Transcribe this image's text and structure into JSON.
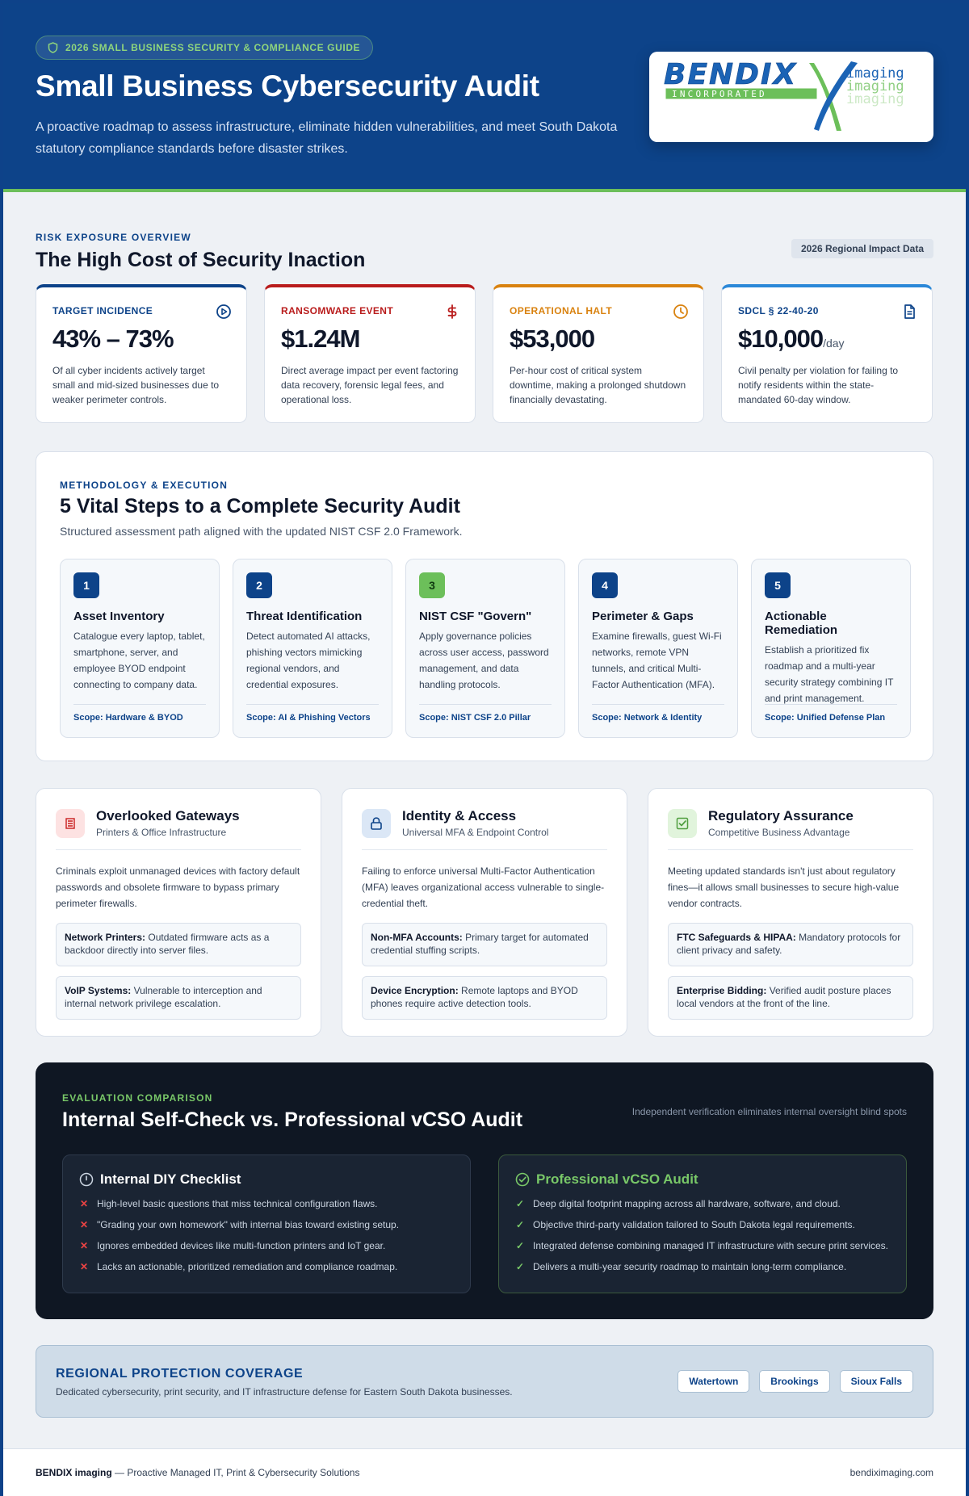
{
  "hero": {
    "guide_label": "2026 SMALL BUSINESS SECURITY & COMPLIANCE GUIDE",
    "title": "Small Business Cybersecurity Audit",
    "subtitle": "A proactive roadmap to assess infrastructure, eliminate hidden vulnerabilities, and meet South Dakota statutory compliance standards before disaster strikes.",
    "logo": {
      "wordmark": "BENDIX",
      "tagline": "INCORPORATED",
      "suffix": "imaging",
      "colors": {
        "blue": "#1b63b5",
        "green": "#6cbf5a"
      }
    }
  },
  "risk_overview": {
    "eyebrow": "RISK EXPOSURE OVERVIEW",
    "title": "The High Cost of Security Inaction",
    "badge": "2026 Regional Impact Data",
    "stats": [
      {
        "label": "TARGET INCIDENCE",
        "value": "43% – 73%",
        "unit": "",
        "desc": "Of all cyber incidents actively target small and mid-sized businesses due to weaker perimeter controls.",
        "icon": "play-circle-icon",
        "color": "#0d4389"
      },
      {
        "label": "RANSOMWARE EVENT",
        "value": "$1.24M",
        "unit": "",
        "desc": "Direct average impact per event factoring data recovery, forensic legal fees, and operational loss.",
        "icon": "dollar-icon",
        "color": "#b91c1c"
      },
      {
        "label": "OPERATIONAL HALT",
        "value": "$53,000",
        "unit": "",
        "desc": "Per-hour cost of critical system downtime, making a prolonged shutdown financially devastating.",
        "icon": "clock-icon",
        "color": "#d9820f"
      },
      {
        "label": "SDCL § 22-40-20",
        "value": "$10,000",
        "unit": "/day",
        "desc": "Civil penalty per violation for failing to notify residents within the state-mandated 60-day window.",
        "icon": "document-icon",
        "color": "#2b88d8"
      }
    ]
  },
  "methodology": {
    "eyebrow": "METHODOLOGY & EXECUTION",
    "title": "5 Vital Steps to a Complete Security Audit",
    "subtitle": "Structured assessment path aligned with the updated NIST CSF 2.0 Framework.",
    "steps": [
      {
        "num": "1",
        "title": "Asset Inventory",
        "desc": "Catalogue every laptop, tablet, smartphone, server, and employee BYOD endpoint connecting to company data.",
        "scope": "Scope: Hardware & BYOD"
      },
      {
        "num": "2",
        "title": "Threat Identification",
        "desc": "Detect automated AI attacks, phishing vectors mimicking regional vendors, and credential exposures.",
        "scope": "Scope: AI & Phishing Vectors"
      },
      {
        "num": "3",
        "title": "NIST CSF \"Govern\"",
        "desc": "Apply governance policies across user access, password management, and data handling protocols.",
        "scope": "Scope: NIST CSF 2.0 Pillar"
      },
      {
        "num": "4",
        "title": "Perimeter & Gaps",
        "desc": "Examine firewalls, guest Wi-Fi networks, remote VPN tunnels, and critical Multi-Factor Authentication (MFA).",
        "scope": "Scope: Network & Identity"
      },
      {
        "num": "5",
        "title": "Actionable Remediation",
        "desc": "Establish a prioritized fix roadmap and a multi-year security strategy combining IT and print management.",
        "scope": "Scope: Unified Defense Plan"
      }
    ]
  },
  "focus_areas": [
    {
      "title": "Overlooked Gateways",
      "subtitle": "Printers & Office Infrastructure",
      "icon": "printer-icon",
      "body": "Criminals exploit unmanaged devices with factory default passwords and obsolete firmware to bypass primary perimeter firewalls.",
      "items": [
        {
          "term": "Network Printers:",
          "text": "Outdated firmware acts as a backdoor directly into server files."
        },
        {
          "term": "VoIP Systems:",
          "text": "Vulnerable to interception and internal network privilege escalation."
        }
      ]
    },
    {
      "title": "Identity & Access",
      "subtitle": "Universal MFA & Endpoint Control",
      "icon": "lock-icon",
      "body": "Failing to enforce universal Multi-Factor Authentication (MFA) leaves organizational access vulnerable to single-credential theft.",
      "items": [
        {
          "term": "Non-MFA Accounts:",
          "text": "Primary target for automated credential stuffing scripts."
        },
        {
          "term": "Device Encryption:",
          "text": "Remote laptops and BYOD phones require active detection tools."
        }
      ]
    },
    {
      "title": "Regulatory Assurance",
      "subtitle": "Competitive Business Advantage",
      "icon": "checkbox-icon",
      "body": "Meeting updated standards isn't just about regulatory fines—it allows small businesses to secure high-value vendor contracts.",
      "items": [
        {
          "term": "FTC Safeguards & HIPAA:",
          "text": "Mandatory protocols for client privacy and safety."
        },
        {
          "term": "Enterprise Bidding:",
          "text": "Verified audit posture places local vendors at the front of the line."
        }
      ]
    }
  ],
  "comparison": {
    "eyebrow": "EVALUATION COMPARISON",
    "title": "Internal Self-Check vs. Professional vCSO Audit",
    "note": "Independent verification eliminates internal oversight blind spots",
    "diy": {
      "title": "Internal DIY Checklist",
      "mark": "✕",
      "items": [
        "High-level basic questions that miss technical configuration flaws.",
        "\"Grading your own homework\" with internal bias toward existing setup.",
        "Ignores embedded devices like multi-function printers and IoT gear.",
        "Lacks an actionable, prioritized remediation and compliance roadmap."
      ]
    },
    "pro": {
      "title": "Professional vCSO Audit",
      "mark": "✓",
      "items": [
        "Deep digital footprint mapping across all hardware, software, and cloud.",
        "Objective third-party validation tailored to South Dakota legal requirements.",
        "Integrated defense combining managed IT infrastructure with secure print services.",
        "Delivers a multi-year security roadmap to maintain long-term compliance."
      ]
    }
  },
  "coverage": {
    "title": "REGIONAL PROTECTION COVERAGE",
    "subtitle": "Dedicated cybersecurity, print security, and IT infrastructure defense for Eastern South Dakota businesses.",
    "cities": [
      "Watertown",
      "Brookings",
      "Sioux Falls"
    ]
  },
  "footer": {
    "brand": "BENDIX imaging",
    "tagline": " — Proactive Managed IT, Print & Cybersecurity Solutions",
    "site": "bendiximaging.com"
  }
}
